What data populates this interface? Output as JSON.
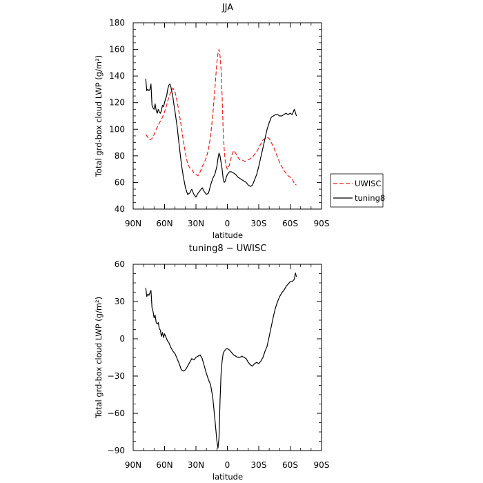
{
  "chart_data": [
    {
      "type": "line",
      "title": "JJA",
      "xlabel": "latitude",
      "ylabel": "Total grd-box cloud LWP (g/m²)",
      "xlim": [
        90,
        -90
      ],
      "ylim": [
        40,
        180
      ],
      "xticks": [
        90,
        60,
        30,
        0,
        -30,
        -60,
        -90
      ],
      "xtick_labels": [
        "90N",
        "60N",
        "30N",
        "0",
        "30S",
        "60S",
        "90S"
      ],
      "yticks": [
        40,
        60,
        80,
        100,
        120,
        140,
        160,
        180
      ],
      "ytick_labels": [
        "40",
        "60",
        "80",
        "100",
        "120",
        "140",
        "160",
        "180"
      ],
      "grid": false,
      "legend_position": "right",
      "series": [
        {
          "name": "UWISC",
          "color": "#e8201e",
          "dash": "dashed",
          "x": [
            78,
            76,
            74,
            72,
            70,
            68,
            66,
            64,
            62,
            60,
            58,
            56,
            54,
            52,
            50,
            48,
            46,
            44,
            42,
            40,
            38,
            36,
            34,
            32,
            30,
            28,
            26,
            24,
            22,
            20,
            18,
            16,
            14,
            12,
            10,
            9,
            8,
            7,
            6,
            5,
            4,
            3,
            2,
            1,
            0,
            -2,
            -4,
            -6,
            -8,
            -10,
            -12,
            -14,
            -16,
            -18,
            -20,
            -22,
            -24,
            -26,
            -28,
            -30,
            -32,
            -34,
            -36,
            -38,
            -40,
            -42,
            -44,
            -46,
            -48,
            -50,
            -52,
            -54,
            -56,
            -58,
            -60,
            -62,
            -64,
            -66
          ],
          "y": [
            96,
            94,
            92,
            93,
            96,
            100,
            103,
            106,
            109,
            113,
            118,
            124,
            128,
            131,
            128,
            121,
            112,
            102,
            91,
            82,
            74,
            71,
            70,
            67,
            66,
            65,
            68,
            72,
            75,
            79,
            85,
            95,
            110,
            130,
            150,
            157,
            160,
            155,
            145,
            125,
            100,
            85,
            76,
            72,
            70,
            73,
            80,
            84,
            82,
            79,
            77,
            77,
            76,
            76,
            77,
            78,
            79,
            81,
            83,
            86,
            89,
            92,
            93,
            94,
            93,
            90,
            87,
            83,
            79,
            75,
            72,
            69,
            67,
            65,
            64,
            63,
            59,
            58
          ]
        },
        {
          "name": "tuning8",
          "color": "#000000",
          "dash": "solid",
          "x": [
            78,
            77,
            76,
            75,
            74,
            73,
            72,
            71,
            70,
            69,
            68,
            67,
            66,
            65,
            64,
            63,
            62,
            61,
            60,
            59,
            58,
            57,
            56,
            55,
            54,
            53,
            52,
            51,
            50,
            48,
            46,
            44,
            42,
            40,
            38,
            36,
            34,
            32,
            30,
            28,
            26,
            24,
            22,
            20,
            18,
            16,
            14,
            12,
            10,
            9,
            8,
            7,
            6,
            5,
            4,
            3,
            2,
            1,
            0,
            -2,
            -4,
            -6,
            -8,
            -10,
            -12,
            -14,
            -16,
            -18,
            -20,
            -22,
            -24,
            -26,
            -28,
            -30,
            -32,
            -34,
            -36,
            -38,
            -40,
            -42,
            -44,
            -46,
            -48,
            -50,
            -52,
            -54,
            -56,
            -58,
            -60,
            -62,
            -64,
            -66
          ],
          "y": [
            138,
            129,
            130,
            129,
            130,
            134,
            118,
            116,
            115,
            119,
            114,
            112,
            115,
            113,
            112,
            114,
            118,
            117,
            120,
            123,
            125,
            130,
            133,
            134,
            132,
            128,
            124,
            118,
            113,
            102,
            88,
            74,
            64,
            56,
            51,
            52,
            55,
            51,
            49,
            52,
            54,
            56,
            53,
            51,
            52,
            58,
            63,
            66,
            72,
            78,
            82,
            80,
            75,
            70,
            63,
            60,
            61,
            64,
            66,
            68,
            68,
            67,
            66,
            64,
            63,
            62,
            61,
            60,
            58,
            57,
            58,
            62,
            66,
            72,
            79,
            86,
            93,
            100,
            105,
            109,
            110,
            111,
            111,
            110,
            110,
            111,
            112,
            111,
            112,
            111,
            115,
            110
          ]
        }
      ]
    },
    {
      "type": "line",
      "title": "tuning8 − UWISC",
      "xlabel": "latitude",
      "ylabel": "Total grd-box cloud LWP (g/m²)",
      "xlim": [
        90,
        -90
      ],
      "ylim": [
        -90,
        60
      ],
      "xticks": [
        90,
        60,
        30,
        0,
        -30,
        -60,
        -90
      ],
      "xtick_labels": [
        "90N",
        "60N",
        "30N",
        "0",
        "30S",
        "60S",
        "90S"
      ],
      "yticks": [
        -90,
        -60,
        -30,
        0,
        30,
        60
      ],
      "ytick_labels": [
        "−90",
        "−60",
        "−30",
        "0",
        "30",
        "60"
      ],
      "grid": false,
      "series": [
        {
          "name": "tuning8 − UWISC",
          "color": "#000000",
          "dash": "solid",
          "x": [
            78,
            77,
            76,
            75,
            74,
            73,
            72,
            71,
            70,
            69,
            68,
            67,
            66,
            65,
            64,
            63,
            62,
            61,
            60,
            59,
            58,
            57,
            56,
            55,
            54,
            52,
            50,
            48,
            46,
            44,
            42,
            40,
            38,
            36,
            34,
            32,
            30,
            28,
            26,
            24,
            22,
            20,
            18,
            16,
            14,
            12,
            11,
            10,
            9,
            8,
            7,
            6,
            5,
            4,
            3,
            2,
            1,
            0,
            -2,
            -4,
            -6,
            -8,
            -10,
            -12,
            -14,
            -16,
            -18,
            -20,
            -22,
            -24,
            -26,
            -28,
            -30,
            -32,
            -34,
            -36,
            -38,
            -40,
            -42,
            -44,
            -46,
            -48,
            -50,
            -52,
            -54,
            -56,
            -58,
            -60,
            -62,
            -64,
            -65,
            -66
          ],
          "y": [
            41,
            34,
            36,
            35,
            37,
            39,
            25,
            22,
            17,
            19,
            13,
            12,
            13,
            8,
            7,
            2,
            5,
            1,
            4,
            2,
            0,
            -2,
            -3,
            -5,
            -7,
            -10,
            -12,
            -16,
            -20,
            -25,
            -26,
            -25,
            -22,
            -19,
            -16,
            -17,
            -15,
            -14,
            -13,
            -16,
            -22,
            -28,
            -33,
            -37,
            -47,
            -64,
            -73,
            -82,
            -88,
            -80,
            -50,
            -28,
            -18,
            -12,
            -10,
            -9,
            -8,
            -8,
            -9,
            -11,
            -13,
            -14,
            -15,
            -15,
            -14,
            -15,
            -16,
            -19,
            -21,
            -22,
            -20,
            -19,
            -20,
            -18,
            -15,
            -10,
            -6,
            2,
            10,
            18,
            25,
            30,
            34,
            37,
            39,
            42,
            44,
            46,
            46,
            48,
            53,
            50
          ]
        }
      ]
    }
  ]
}
